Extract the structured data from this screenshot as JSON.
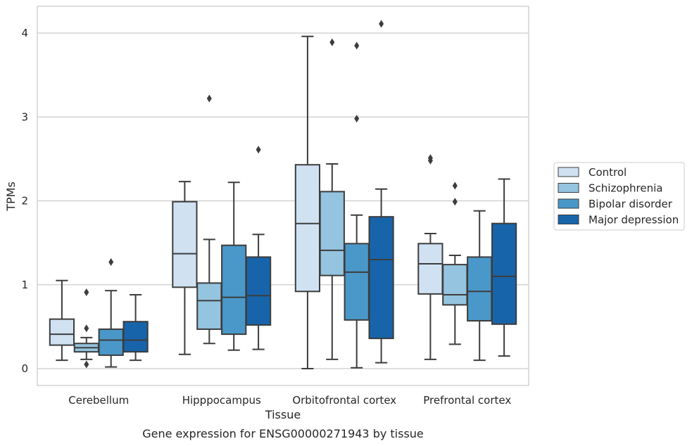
{
  "chart_data": {
    "type": "box",
    "caption": "Gene expression for ENSG00000271943 by tissue",
    "xlabel": "Tissue",
    "ylabel": "TPMs",
    "ylim": [
      -0.2,
      4.32
    ],
    "yticks": [
      0,
      1,
      2,
      3,
      4
    ],
    "grid": "horizontal",
    "legend_position": "right",
    "categories": [
      "Cerebellum",
      "Hipppocampus",
      "Orbitofrontal cortex",
      "Prefrontal cortex"
    ],
    "series": [
      {
        "name": "Control",
        "color": "#d0e1f2",
        "boxes": [
          {
            "whislo": 0.1,
            "q1": 0.28,
            "med": 0.41,
            "q3": 0.59,
            "whishi": 1.05,
            "fliers": []
          },
          {
            "whislo": 0.17,
            "q1": 0.97,
            "med": 1.37,
            "q3": 1.99,
            "whishi": 2.23,
            "fliers": []
          },
          {
            "whislo": 0.0,
            "q1": 0.92,
            "med": 1.73,
            "q3": 2.43,
            "whishi": 3.96,
            "fliers": []
          },
          {
            "whislo": 0.11,
            "q1": 0.89,
            "med": 1.25,
            "q3": 1.49,
            "whishi": 1.61,
            "fliers": [
              2.48,
              2.51
            ]
          }
        ]
      },
      {
        "name": "Schizophrenia",
        "color": "#94c4df",
        "boxes": [
          {
            "whislo": 0.11,
            "q1": 0.2,
            "med": 0.25,
            "q3": 0.3,
            "whishi": 0.37,
            "fliers": [
              0.91,
              0.48,
              0.05
            ]
          },
          {
            "whislo": 0.3,
            "q1": 0.47,
            "med": 0.81,
            "q3": 1.02,
            "whishi": 1.54,
            "fliers": [
              3.22
            ]
          },
          {
            "whislo": 0.11,
            "q1": 1.11,
            "med": 1.41,
            "q3": 2.11,
            "whishi": 2.44,
            "fliers": [
              3.89
            ]
          },
          {
            "whislo": 0.29,
            "q1": 0.76,
            "med": 0.88,
            "q3": 1.24,
            "whishi": 1.35,
            "fliers": [
              2.18,
              1.99
            ]
          }
        ]
      },
      {
        "name": "Bipolar disorder",
        "color": "#4a98c9",
        "boxes": [
          {
            "whislo": 0.02,
            "q1": 0.16,
            "med": 0.34,
            "q3": 0.47,
            "whishi": 0.93,
            "fliers": [
              1.27
            ]
          },
          {
            "whislo": 0.22,
            "q1": 0.41,
            "med": 0.85,
            "q3": 1.47,
            "whishi": 2.22,
            "fliers": []
          },
          {
            "whislo": 0.01,
            "q1": 0.58,
            "med": 1.15,
            "q3": 1.49,
            "whishi": 1.83,
            "fliers": [
              3.85,
              2.98
            ]
          },
          {
            "whislo": 0.1,
            "q1": 0.57,
            "med": 0.92,
            "q3": 1.33,
            "whishi": 1.88,
            "fliers": []
          }
        ]
      },
      {
        "name": "Major depression",
        "color": "#1764ab",
        "boxes": [
          {
            "whislo": 0.1,
            "q1": 0.2,
            "med": 0.34,
            "q3": 0.56,
            "whishi": 0.88,
            "fliers": []
          },
          {
            "whislo": 0.23,
            "q1": 0.52,
            "med": 0.87,
            "q3": 1.33,
            "whishi": 1.6,
            "fliers": [
              2.61
            ]
          },
          {
            "whislo": 0.07,
            "q1": 0.36,
            "med": 1.3,
            "q3": 1.81,
            "whishi": 2.14,
            "fliers": [
              4.11
            ]
          },
          {
            "whislo": 0.15,
            "q1": 0.53,
            "med": 1.1,
            "q3": 1.73,
            "whishi": 2.26,
            "fliers": []
          }
        ]
      }
    ]
  }
}
